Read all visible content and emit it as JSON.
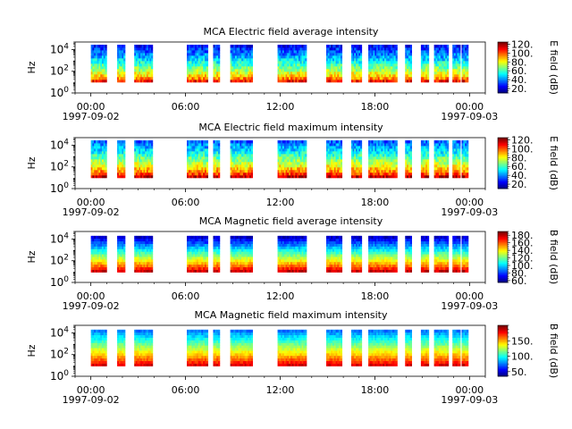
{
  "chart_data": [
    {
      "type": "heatmap",
      "title": "MCA  Electric field average intensity",
      "ylabel": "Hz",
      "y_scale": "log",
      "y_ticks": [
        {
          "base": "10",
          "exp": "0"
        },
        {
          "base": "10",
          "exp": "2"
        },
        {
          "base": "10",
          "exp": "4"
        }
      ],
      "x_ticks": [
        "00:00",
        "06:00",
        "12:00",
        "18:00",
        "00:00"
      ],
      "x_dates": [
        {
          "label": "1997-09-02",
          "at": "00:00"
        },
        {
          "label": "1997-09-03",
          "at": "00:00"
        }
      ],
      "xlim": [
        "1997-09-01T23:00",
        "1997-09-03T01:00"
      ],
      "colorbar": {
        "label": "E field (dB)",
        "range": [
          10,
          125
        ],
        "ticks": [
          "20.",
          "40.",
          "60.",
          "80.",
          "100.",
          "120."
        ],
        "tick_values": [
          20,
          40,
          60,
          80,
          100,
          120
        ]
      },
      "intensity_range": [
        25,
        110
      ],
      "data_intervals": [
        [
          "00:00",
          "01:00"
        ],
        [
          "01:40",
          "02:10"
        ],
        [
          "02:45",
          "03:55"
        ],
        [
          "06:05",
          "07:25"
        ],
        [
          "07:45",
          "08:10"
        ],
        [
          "08:50",
          "10:15"
        ],
        [
          "11:50",
          "13:40"
        ],
        [
          "14:55",
          "15:55"
        ],
        [
          "16:30",
          "17:10"
        ],
        [
          "17:35",
          "19:25"
        ],
        [
          "19:55",
          "20:20"
        ],
        [
          "20:55",
          "21:25"
        ],
        [
          "21:45",
          "22:40"
        ],
        [
          "22:55",
          "23:25"
        ],
        [
          "23:30",
          "23:55"
        ]
      ]
    },
    {
      "type": "heatmap",
      "title": "MCA  Electric field maximum intensity",
      "ylabel": "Hz",
      "y_scale": "log",
      "y_ticks": [
        {
          "base": "10",
          "exp": "0"
        },
        {
          "base": "10",
          "exp": "2"
        },
        {
          "base": "10",
          "exp": "4"
        }
      ],
      "x_ticks": [
        "00:00",
        "06:00",
        "12:00",
        "18:00",
        "00:00"
      ],
      "x_dates": [
        {
          "label": "1997-09-02",
          "at": "00:00"
        },
        {
          "label": "1997-09-03",
          "at": "00:00"
        }
      ],
      "xlim": [
        "1997-09-01T23:00",
        "1997-09-03T01:00"
      ],
      "colorbar": {
        "label": "E field (dB)",
        "range": [
          10,
          125
        ],
        "ticks": [
          "20.",
          "40.",
          "60.",
          "80.",
          "100.",
          "120."
        ],
        "tick_values": [
          20,
          40,
          60,
          80,
          100,
          120
        ]
      },
      "intensity_range": [
        35,
        118
      ],
      "data_intervals": [
        [
          "00:00",
          "01:00"
        ],
        [
          "01:40",
          "02:10"
        ],
        [
          "02:45",
          "03:55"
        ],
        [
          "06:05",
          "07:25"
        ],
        [
          "07:45",
          "08:10"
        ],
        [
          "08:50",
          "10:15"
        ],
        [
          "11:50",
          "13:40"
        ],
        [
          "14:55",
          "15:55"
        ],
        [
          "16:30",
          "17:10"
        ],
        [
          "17:35",
          "19:25"
        ],
        [
          "19:55",
          "20:20"
        ],
        [
          "20:55",
          "21:25"
        ],
        [
          "21:45",
          "22:40"
        ],
        [
          "22:55",
          "23:25"
        ],
        [
          "23:30",
          "23:55"
        ]
      ]
    },
    {
      "type": "heatmap",
      "title": "MCA  Magnetic field average intensity",
      "ylabel": "Hz",
      "y_scale": "log",
      "y_ticks": [
        {
          "base": "10",
          "exp": "0"
        },
        {
          "base": "10",
          "exp": "2"
        },
        {
          "base": "10",
          "exp": "4"
        }
      ],
      "x_ticks": [
        "00:00",
        "06:00",
        "12:00",
        "18:00",
        "00:00"
      ],
      "x_dates": [
        {
          "label": "1997-09-02",
          "at": "00:00"
        },
        {
          "label": "1997-09-03",
          "at": "00:00"
        }
      ],
      "xlim": [
        "1997-09-01T23:00",
        "1997-09-03T01:00"
      ],
      "colorbar": {
        "label": "B field (dB)",
        "range": [
          55,
          190
        ],
        "ticks": [
          "60.",
          "80.",
          "100.",
          "120.",
          "140.",
          "160.",
          "180."
        ],
        "tick_values": [
          60,
          80,
          100,
          120,
          140,
          160,
          180
        ]
      },
      "intensity_range": [
        65,
        180
      ],
      "data_intervals": [
        [
          "00:00",
          "01:00"
        ],
        [
          "01:40",
          "02:10"
        ],
        [
          "02:45",
          "03:55"
        ],
        [
          "06:05",
          "07:25"
        ],
        [
          "07:45",
          "08:10"
        ],
        [
          "08:50",
          "10:15"
        ],
        [
          "11:50",
          "13:40"
        ],
        [
          "14:55",
          "15:55"
        ],
        [
          "16:30",
          "17:10"
        ],
        [
          "17:35",
          "19:25"
        ],
        [
          "19:55",
          "20:20"
        ],
        [
          "20:55",
          "21:25"
        ],
        [
          "21:45",
          "22:40"
        ],
        [
          "22:55",
          "23:25"
        ],
        [
          "23:30",
          "23:55"
        ]
      ]
    },
    {
      "type": "heatmap",
      "title": "MCA  Magnetic field maximum intensity",
      "ylabel": "Hz",
      "y_scale": "log",
      "y_ticks": [
        {
          "base": "10",
          "exp": "0"
        },
        {
          "base": "10",
          "exp": "2"
        },
        {
          "base": "10",
          "exp": "4"
        }
      ],
      "x_ticks": [
        "00:00",
        "06:00",
        "12:00",
        "18:00",
        "00:00"
      ],
      "x_dates": [
        {
          "label": "1997-09-02",
          "at": "00:00"
        },
        {
          "label": "1997-09-03",
          "at": "00:00"
        }
      ],
      "xlim": [
        "1997-09-01T23:00",
        "1997-09-03T01:00"
      ],
      "colorbar": {
        "label": "B field (dB)",
        "range": [
          35,
          200
        ],
        "ticks": [
          "50.",
          "100.",
          "150."
        ],
        "tick_values": [
          50,
          100,
          150
        ]
      },
      "intensity_range": [
        75,
        185
      ],
      "data_intervals": [
        [
          "00:00",
          "01:00"
        ],
        [
          "01:40",
          "02:10"
        ],
        [
          "02:45",
          "03:55"
        ],
        [
          "06:05",
          "07:25"
        ],
        [
          "07:45",
          "08:10"
        ],
        [
          "08:50",
          "10:15"
        ],
        [
          "11:50",
          "13:40"
        ],
        [
          "14:55",
          "15:55"
        ],
        [
          "16:30",
          "17:10"
        ],
        [
          "17:35",
          "19:25"
        ],
        [
          "19:55",
          "20:20"
        ],
        [
          "20:55",
          "21:25"
        ],
        [
          "21:45",
          "22:40"
        ],
        [
          "22:55",
          "23:25"
        ],
        [
          "23:30",
          "23:55"
        ]
      ]
    }
  ]
}
